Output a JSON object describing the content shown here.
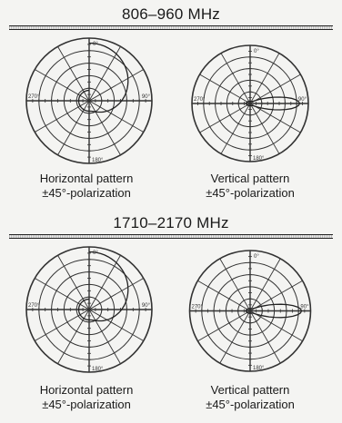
{
  "bands": [
    {
      "title": "806–960 MHz",
      "patterns": [
        {
          "caption_line1": "Horizontal pattern",
          "caption_line2": "±45°-polarization",
          "lobe": "horizontal"
        },
        {
          "caption_line1": "Vertical pattern",
          "caption_line2": "±45°-polarization",
          "lobe": "vertical"
        }
      ]
    },
    {
      "title": "1710–2170 MHz",
      "patterns": [
        {
          "caption_line1": "Horizontal pattern",
          "caption_line2": "±45°-polarization",
          "lobe": "horizontal"
        },
        {
          "caption_line1": "Vertical pattern",
          "caption_line2": "±45°-polarization",
          "lobe": "vertical"
        }
      ]
    }
  ],
  "polar_labels": {
    "top": "0°",
    "right": "90°",
    "bottom": "180°",
    "left": "270°"
  },
  "colors": {
    "line": "#222222",
    "grid": "#333333",
    "background": "#f4f4f2"
  }
}
